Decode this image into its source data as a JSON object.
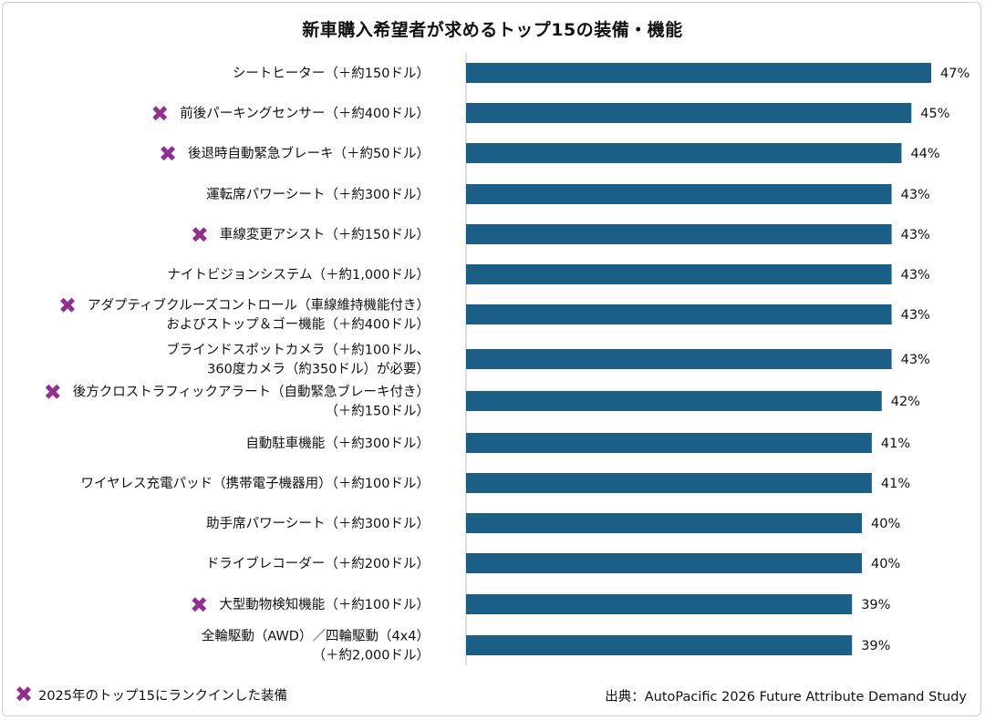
{
  "title": "新車購入希望者が求めるトップ15の装備・機能",
  "legend": {
    "mark_label": "2025年のトップ15にランクインした装備"
  },
  "source": "出典：AutoPacific 2026 Future Attribute Demand Study",
  "colors": {
    "bar": "#1b5e86",
    "marker": "#93308f"
  },
  "chart_data": {
    "type": "bar",
    "orientation": "horizontal",
    "value_unit": "%",
    "xlim": [
      0,
      47
    ],
    "categories": [
      {
        "lines": [
          "シートヒーター（＋約150ドル）"
        ],
        "value": 47,
        "marked": false
      },
      {
        "lines": [
          "前後パーキングセンサー（＋約400ドル）"
        ],
        "value": 45,
        "marked": true
      },
      {
        "lines": [
          "後退時自動緊急ブレーキ（＋約50ドル）"
        ],
        "value": 44,
        "marked": true
      },
      {
        "lines": [
          "運転席パワーシート（＋約300ドル）"
        ],
        "value": 43,
        "marked": false
      },
      {
        "lines": [
          "車線変更アシスト（＋約150ドル）"
        ],
        "value": 43,
        "marked": true
      },
      {
        "lines": [
          "ナイトビジョンシステム（＋約1,000ドル）"
        ],
        "value": 43,
        "marked": false
      },
      {
        "lines": [
          "アダプティブクルーズコントロール（車線維持機能付き）",
          "およびストップ＆ゴー機能（＋約400ドル）"
        ],
        "value": 43,
        "marked": true
      },
      {
        "lines": [
          "ブラインドスポットカメラ（＋約100ドル、",
          "360度カメラ（約350ドル）が必要）"
        ],
        "value": 43,
        "marked": false
      },
      {
        "lines": [
          "後方クロストラフィックアラート（自動緊急ブレーキ付き）",
          "（＋約150ドル）"
        ],
        "value": 42,
        "marked": true
      },
      {
        "lines": [
          "自動駐車機能（＋約300ドル）"
        ],
        "value": 41,
        "marked": false
      },
      {
        "lines": [
          "ワイヤレス充電パッド（携帯電子機器用）（＋約100ドル）"
        ],
        "value": 41,
        "marked": false
      },
      {
        "lines": [
          "助手席パワーシート（＋約300ドル）"
        ],
        "value": 40,
        "marked": false
      },
      {
        "lines": [
          "ドライブレコーダー（＋約200ドル）"
        ],
        "value": 40,
        "marked": false
      },
      {
        "lines": [
          "大型動物検知機能（＋約100ドル）"
        ],
        "value": 39,
        "marked": true
      },
      {
        "lines": [
          "全輪駆動（AWD）／四輪駆動（4x4）",
          "（＋約2,000ドル）"
        ],
        "value": 39,
        "marked": false
      }
    ],
    "value_labels": [
      "47%",
      "45%",
      "44%",
      "43%",
      "43%",
      "43%",
      "43%",
      "43%",
      "42%",
      "41%",
      "41%",
      "40%",
      "40%",
      "39%",
      "39%"
    ]
  }
}
